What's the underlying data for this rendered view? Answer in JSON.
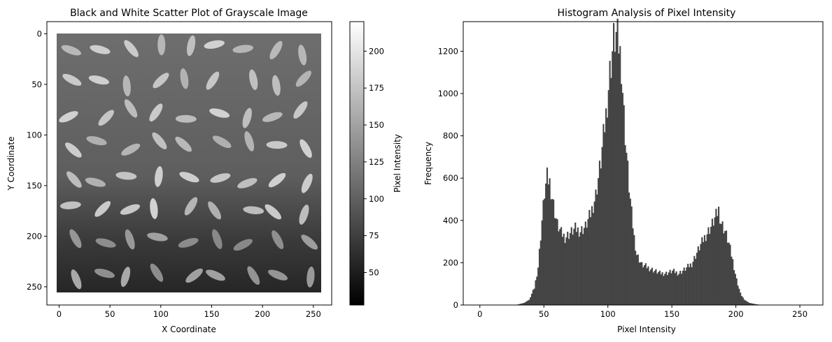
{
  "chart_data": [
    {
      "type": "heatmap",
      "title": "Black and White Scatter Plot of Grayscale Image",
      "xlabel": "X Coordinate",
      "ylabel": "Y Coordinate",
      "xlim": [
        -12,
        268
      ],
      "ylim": [
        268,
        -12
      ],
      "x_ticks": [
        "0",
        "50",
        "100",
        "150",
        "200",
        "250"
      ],
      "y_ticks": [
        "0",
        "50",
        "100",
        "150",
        "200",
        "250"
      ],
      "colormap": "gray",
      "colorbar": {
        "label": "Pixel Intensity",
        "range": [
          28,
          220
        ],
        "ticks": [
          "50",
          "75",
          "100",
          "125",
          "150",
          "175",
          "200"
        ]
      },
      "grid": false
    },
    {
      "type": "bar",
      "title": "Histogram Analysis of Pixel Intensity",
      "xlabel": "Pixel Intensity",
      "ylabel": "Frequency",
      "xlim": [
        -13,
        268
      ],
      "ylim": [
        0,
        1340
      ],
      "x_ticks": [
        "0",
        "50",
        "100",
        "150",
        "200",
        "250"
      ],
      "y_ticks": [
        "0",
        "200",
        "400",
        "600",
        "800",
        "1000",
        "1200"
      ],
      "bar_color": "#444444",
      "profile": [
        [
          0,
          0
        ],
        [
          27,
          0
        ],
        [
          30,
          4
        ],
        [
          34,
          10
        ],
        [
          38,
          25
        ],
        [
          42,
          80
        ],
        [
          45,
          180
        ],
        [
          48,
          400
        ],
        [
          50,
          530
        ],
        [
          52,
          600
        ],
        [
          54,
          580
        ],
        [
          56,
          510
        ],
        [
          58,
          440
        ],
        [
          60,
          380
        ],
        [
          63,
          340
        ],
        [
          66,
          320
        ],
        [
          70,
          340
        ],
        [
          74,
          360
        ],
        [
          78,
          350
        ],
        [
          82,
          370
        ],
        [
          86,
          430
        ],
        [
          90,
          520
        ],
        [
          94,
          680
        ],
        [
          98,
          900
        ],
        [
          101,
          1100
        ],
        [
          104,
          1250
        ],
        [
          106,
          1270
        ],
        [
          108,
          1230
        ],
        [
          110,
          1140
        ],
        [
          112,
          900
        ],
        [
          114,
          720
        ],
        [
          116,
          560
        ],
        [
          118,
          430
        ],
        [
          120,
          320
        ],
        [
          122,
          240
        ],
        [
          126,
          190
        ],
        [
          130,
          180
        ],
        [
          135,
          165
        ],
        [
          140,
          150
        ],
        [
          145,
          150
        ],
        [
          150,
          160
        ],
        [
          155,
          150
        ],
        [
          160,
          170
        ],
        [
          165,
          195
        ],
        [
          170,
          260
        ],
        [
          175,
          320
        ],
        [
          180,
          370
        ],
        [
          184,
          420
        ],
        [
          186,
          450
        ],
        [
          188,
          390
        ],
        [
          191,
          350
        ],
        [
          194,
          290
        ],
        [
          197,
          210
        ],
        [
          200,
          120
        ],
        [
          203,
          55
        ],
        [
          206,
          25
        ],
        [
          210,
          10
        ],
        [
          215,
          4
        ],
        [
          220,
          0
        ],
        [
          255,
          0
        ]
      ]
    }
  ]
}
